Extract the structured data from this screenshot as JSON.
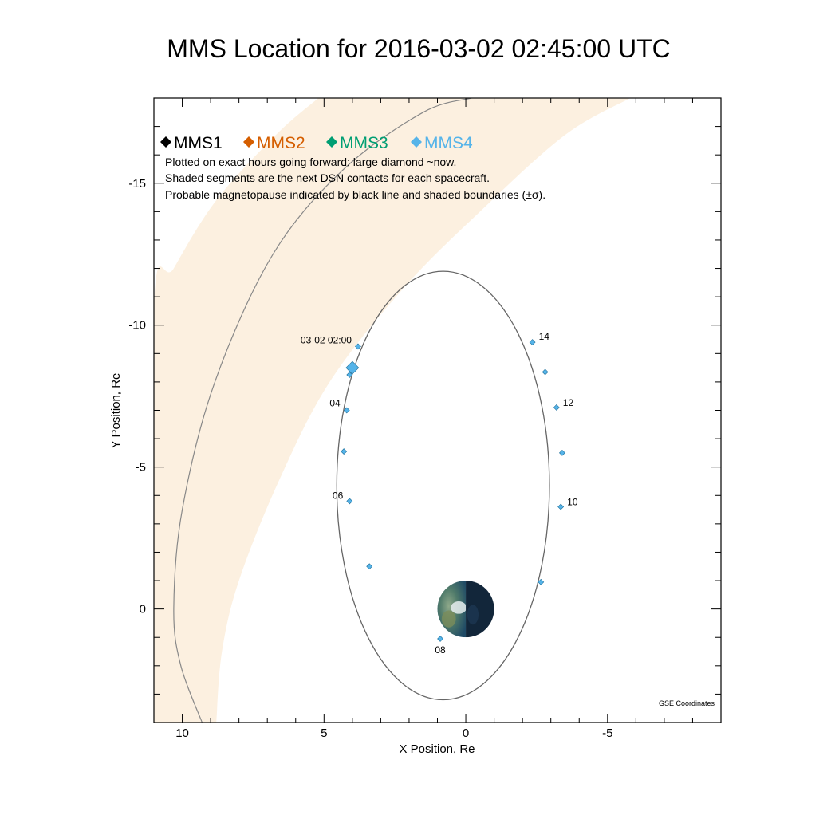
{
  "chart_data": {
    "type": "scatter",
    "title": "MMS Location for 2016-03-02 02:45:00 UTC",
    "xlabel": "X Position, Re",
    "ylabel": "Y Position, Re",
    "xlim": [
      11,
      -9
    ],
    "ylim": [
      -18,
      4
    ],
    "x_ticks": [
      10,
      5,
      0,
      -5
    ],
    "x_tick_labels": [
      "10",
      "5",
      "0",
      "-5"
    ],
    "y_ticks": [
      -15,
      -10,
      -5,
      0
    ],
    "y_tick_labels": [
      "-15",
      "-10",
      "-5",
      "0"
    ],
    "grid": false,
    "coordinates_label": "GSE Coordinates",
    "legend": {
      "position": "top-left",
      "entries": [
        {
          "name": "MMS1",
          "color": "#000000"
        },
        {
          "name": "MMS2",
          "color": "#d55e00"
        },
        {
          "name": "MMS3",
          "color": "#009e73"
        },
        {
          "name": "MMS4",
          "color": "#56b4e9"
        }
      ]
    },
    "notes": [
      "Plotted on exact hours going forward; large diamond ~now.",
      "Shaded segments are the next DSN contacts for each spacecraft.",
      "Probable magnetopause indicated by black line and shaded boundaries (±σ)."
    ],
    "orbit": {
      "center_x": 0.8,
      "center_y": -4.35,
      "semi_x": 3.75,
      "semi_y": 7.55,
      "color": "#666666"
    },
    "hour_points": [
      {
        "x": 3.8,
        "y": -9.25,
        "label": "03-02 02:00"
      },
      {
        "x": 4.1,
        "y": -8.25,
        "label": ""
      },
      {
        "x": 4.2,
        "y": -7.0,
        "label": "04"
      },
      {
        "x": 4.3,
        "y": -5.55,
        "label": ""
      },
      {
        "x": 4.1,
        "y": -3.8,
        "label": "06"
      },
      {
        "x": 3.4,
        "y": -1.5,
        "label": ""
      },
      {
        "x": 0.9,
        "y": 1.05,
        "label": "08"
      },
      {
        "x": -2.65,
        "y": -0.95,
        "label": ""
      },
      {
        "x": -3.35,
        "y": -3.6,
        "label": "10"
      },
      {
        "x": -3.4,
        "y": -5.5,
        "label": ""
      },
      {
        "x": -3.2,
        "y": -7.1,
        "label": "12"
      },
      {
        "x": -2.8,
        "y": -8.35,
        "label": ""
      },
      {
        "x": -2.35,
        "y": -9.4,
        "label": "14"
      }
    ],
    "current_position": {
      "x": 4.0,
      "y": -8.5
    },
    "point_color": "#56b4e9",
    "magnetopause": {
      "color": "#888888",
      "band_color": "#fcf0e0",
      "line": [
        {
          "x": 9.3,
          "y": 4.0
        },
        {
          "x": 10.05,
          "y": 2.0
        },
        {
          "x": 10.3,
          "y": 0.0
        },
        {
          "x": 10.0,
          "y": -3.5
        },
        {
          "x": 8.85,
          "y": -8.0
        },
        {
          "x": 6.8,
          "y": -12.5
        },
        {
          "x": 4.3,
          "y": -15.5
        },
        {
          "x": 1.5,
          "y": -17.5
        },
        {
          "x": -0.2,
          "y": -18.0
        }
      ],
      "band_outer": [
        {
          "x": 11.0,
          "y": 4.0
        },
        {
          "x": 11.0,
          "y": -10.6
        },
        {
          "x": 10.3,
          "y": -12.0
        },
        {
          "x": 8.8,
          "y": -14.4
        },
        {
          "x": 6.7,
          "y": -16.7
        },
        {
          "x": 5.2,
          "y": -18.0
        }
      ],
      "band_inner": [
        {
          "x": -5.8,
          "y": -18.0
        },
        {
          "x": -3.5,
          "y": -16.7
        },
        {
          "x": -0.5,
          "y": -14.0
        },
        {
          "x": 2.2,
          "y": -11.3
        },
        {
          "x": 4.8,
          "y": -8.0
        },
        {
          "x": 6.6,
          "y": -4.5
        },
        {
          "x": 8.0,
          "y": -1.0
        },
        {
          "x": 8.6,
          "y": 1.5
        },
        {
          "x": 8.8,
          "y": 4.0
        }
      ]
    },
    "earth": {
      "x": 0.0,
      "y": 0.0,
      "radius": 1.0
    }
  }
}
